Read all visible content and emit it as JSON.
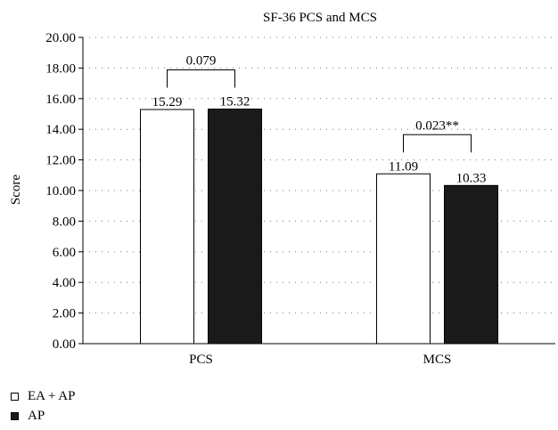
{
  "chart_data": {
    "type": "bar",
    "title": "SF-36 PCS and MCS",
    "xlabel": "",
    "ylabel": "Score",
    "ylim": [
      0,
      20
    ],
    "yticks": [
      "0.00",
      "2.00",
      "4.00",
      "6.00",
      "8.00",
      "10.00",
      "12.00",
      "14.00",
      "16.00",
      "18.00",
      "20.00"
    ],
    "categories": [
      "PCS",
      "MCS"
    ],
    "series": [
      {
        "name": "EA + AP",
        "values": [
          15.29,
          11.09
        ],
        "value_labels": [
          "15.29",
          "11.09"
        ],
        "color": "#ffffff"
      },
      {
        "name": "AP",
        "values": [
          15.32,
          10.33
        ],
        "value_labels": [
          "15.32",
          "10.33"
        ],
        "color": "#1a1a1a"
      }
    ],
    "annotations": [
      {
        "category": "PCS",
        "text": "0.079"
      },
      {
        "category": "MCS",
        "text": "0.023**"
      }
    ],
    "grid": true,
    "legend_position": "bottom-left"
  }
}
